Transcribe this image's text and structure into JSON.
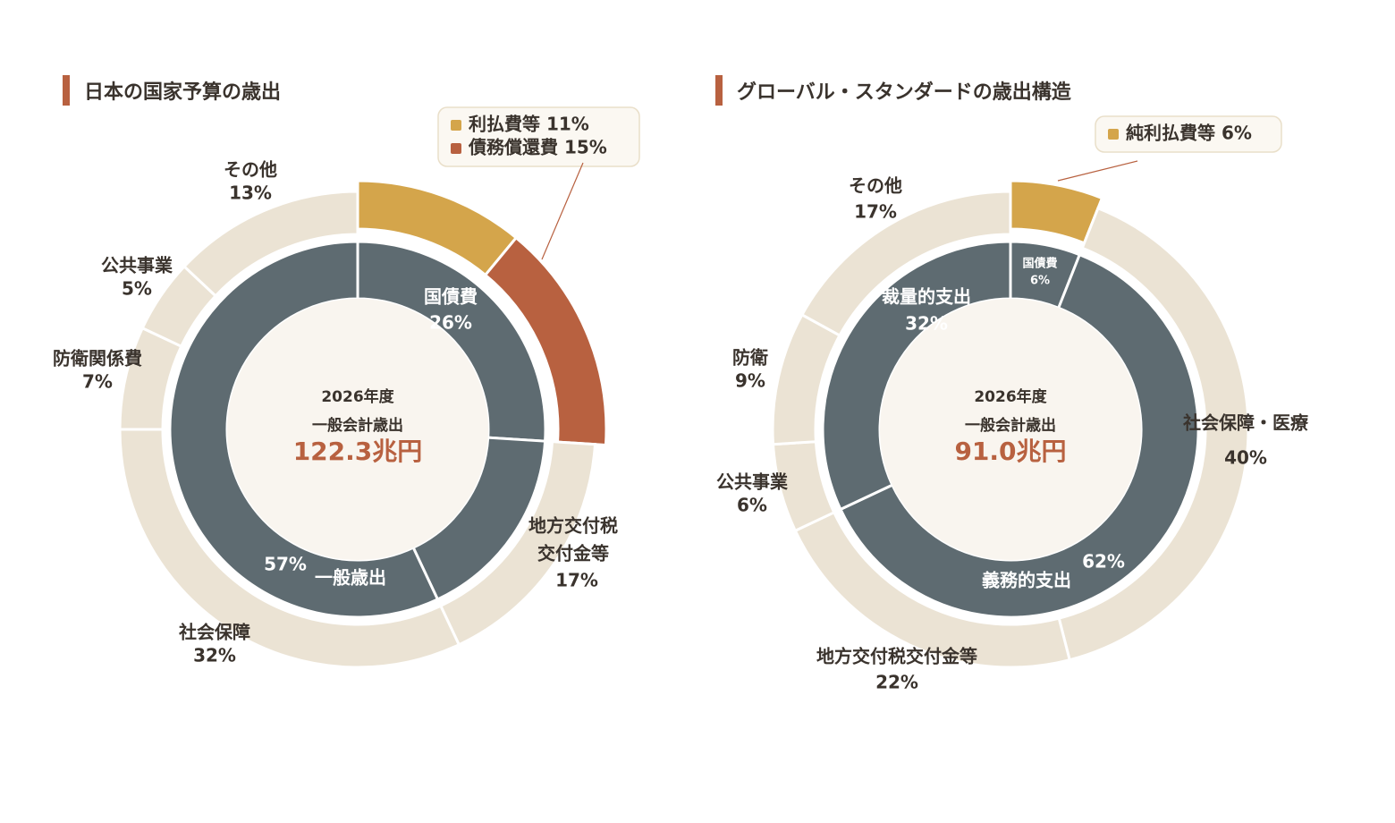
{
  "colors": {
    "gold": "#d4a54b",
    "rust": "#b86140",
    "slate": "#5e6b71",
    "beige": "#ebe3d4",
    "cream": "#f9f5ef",
    "text": "#3a332d",
    "accent_title_bar": "#b86140"
  },
  "charts": [
    {
      "id": "japan",
      "title": "日本の国家予算の歳出",
      "center": {
        "line1": "2026年度",
        "line2": "一般会計歳出",
        "total": "122.3兆円"
      },
      "legend": [
        {
          "label": "利払費等 11%",
          "color": "gold"
        },
        {
          "label": "債務償還費 15%",
          "color": "rust"
        }
      ]
    },
    {
      "id": "global",
      "title": "グローバル・スタンダードの歳出構造",
      "center": {
        "line1": "2026年度",
        "line2": "一般会計歳出",
        "total": "91.0兆円"
      },
      "legend": [
        {
          "label": "純利払費等 6%",
          "color": "gold"
        }
      ]
    }
  ],
  "chart_data": [
    {
      "type": "pie",
      "title": "日本の国家予算の歳出",
      "inner_ring": [
        {
          "name": "国債費",
          "value": 26
        },
        {
          "name": "地方交付税交付金等",
          "value": 17
        },
        {
          "name": "一般歳出",
          "value": 57
        }
      ],
      "outer_ring": [
        {
          "name": "利払費等",
          "value": 11,
          "color": "gold",
          "exploded": true
        },
        {
          "name": "債務償還費",
          "value": 15,
          "color": "rust",
          "exploded": true
        },
        {
          "name": "地方交付税\n交付金等",
          "value": 17
        },
        {
          "name": "社会保障",
          "value": 32
        },
        {
          "name": "防衛関係費",
          "value": 7
        },
        {
          "name": "公共事業",
          "value": 5
        },
        {
          "name": "その他",
          "value": 13
        }
      ]
    },
    {
      "type": "pie",
      "title": "グローバル・スタンダードの歳出構造",
      "inner_ring": [
        {
          "name": "国債費",
          "value": 6
        },
        {
          "name": "義務的支出",
          "value": 62
        },
        {
          "name": "裁量的支出",
          "value": 32
        }
      ],
      "outer_ring": [
        {
          "name": "純利払費等",
          "value": 6,
          "color": "gold",
          "exploded": true
        },
        {
          "name": "社会保障・医療",
          "value": 40
        },
        {
          "name": "地方交付税交付金等",
          "value": 22
        },
        {
          "name": "公共事業",
          "value": 6
        },
        {
          "name": "防衛",
          "value": 9
        },
        {
          "name": "その他",
          "value": 17
        }
      ]
    }
  ],
  "labels": {
    "japan": {
      "inner": [
        {
          "name": "国債費",
          "pct": "26%"
        },
        {
          "name": "一般歳出",
          "pct": "57%"
        }
      ],
      "outer": [
        {
          "name": "その他",
          "pct": "13%"
        },
        {
          "name": "公共事業",
          "pct": "5%"
        },
        {
          "name": "防衛関係費",
          "pct": "7%"
        },
        {
          "name": "社会保障",
          "pct": "32%"
        },
        {
          "name": "地方交付税",
          "name2": "交付金等",
          "pct": "17%"
        }
      ]
    },
    "global": {
      "inner": [
        {
          "name": "国債費",
          "pct": "6%"
        },
        {
          "name": "裁量的支出",
          "pct": "32%"
        },
        {
          "name": "義務的支出",
          "pct": "62%"
        }
      ],
      "outer": [
        {
          "name": "その他",
          "pct": "17%"
        },
        {
          "name": "防衛",
          "pct": "9%"
        },
        {
          "name": "公共事業",
          "pct": "6%"
        },
        {
          "name": "地方交付税交付金等",
          "pct": "22%"
        },
        {
          "name": "社会保障・医療",
          "pct": "40%"
        }
      ]
    }
  }
}
